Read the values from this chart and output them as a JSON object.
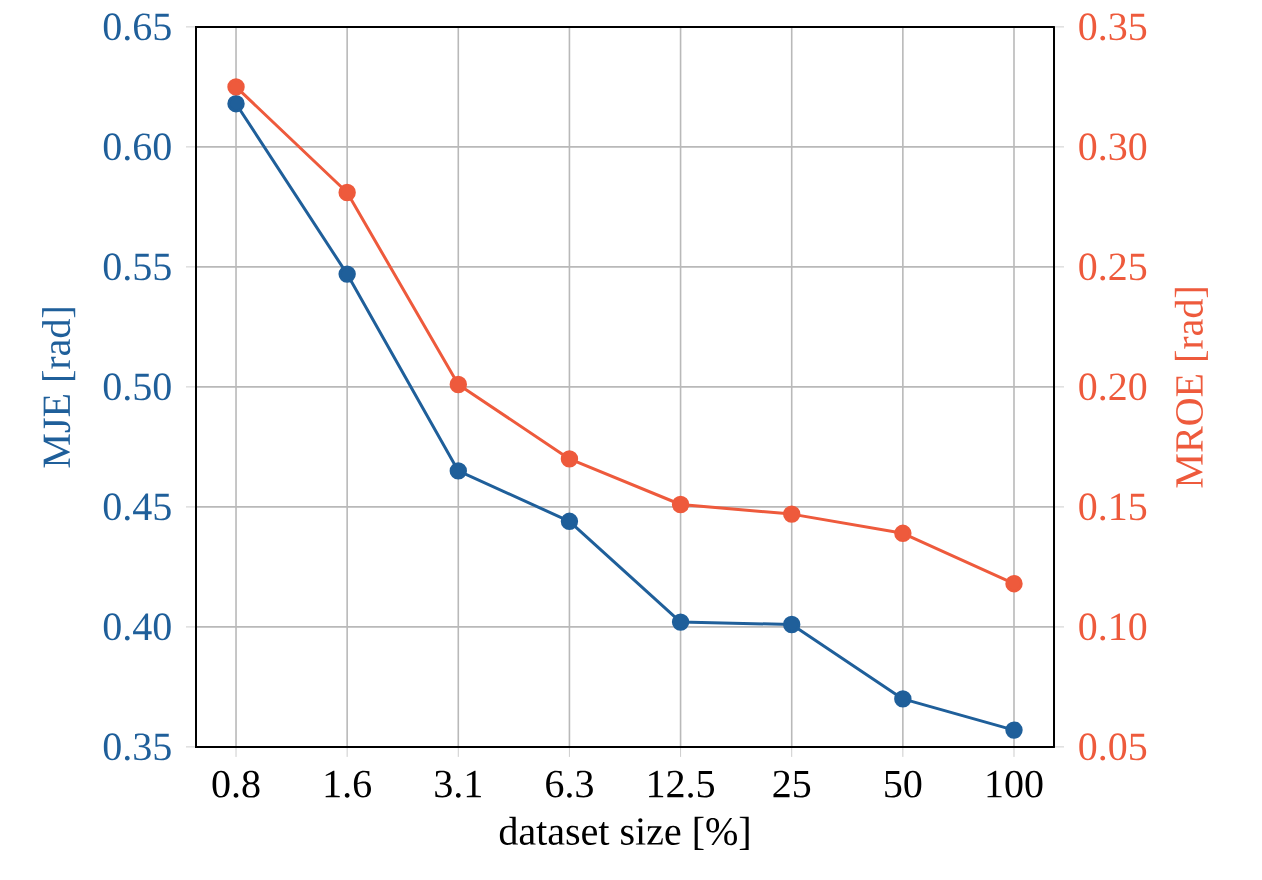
{
  "chart_data": {
    "type": "line",
    "xlabel": "dataset size [%]",
    "ylabel": "MJE [rad]",
    "y2label": "MROE [rad]",
    "categories": [
      "0.8",
      "1.6",
      "3.1",
      "6.3",
      "12.5",
      "25",
      "50",
      "100"
    ],
    "series": [
      {
        "name": null,
        "color": "#1f5f9a",
        "values": [
          0.618,
          0.547,
          0.465,
          0.444,
          0.402,
          0.401,
          0.37,
          0.357
        ]
      },
      {
        "name": null,
        "color": "#ee5a3c",
        "axis": "y2",
        "values": [
          0.325,
          0.281,
          0.201,
          0.17,
          0.151,
          0.147,
          0.139,
          0.118
        ]
      }
    ],
    "ylim": [
      0.35,
      0.65
    ],
    "yticks": [
      0.35,
      {
        "value": 0.4,
        "label": "0.40"
      },
      0.45,
      {
        "value": 0.5,
        "label": "0.50"
      },
      0.55,
      {
        "value": 0.6,
        "label": "0.60"
      },
      0.65
    ],
    "y2lim": [
      0.05,
      0.35
    ],
    "y2ticks": [
      0.05,
      {
        "value": 0.1,
        "label": "0.10"
      },
      0.15,
      {
        "value": 0.2,
        "label": "0.20"
      },
      0.25,
      {
        "value": 0.3,
        "label": "0.30"
      },
      0.35
    ],
    "grid": true,
    "marker": "circle",
    "line_style": "solid"
  }
}
